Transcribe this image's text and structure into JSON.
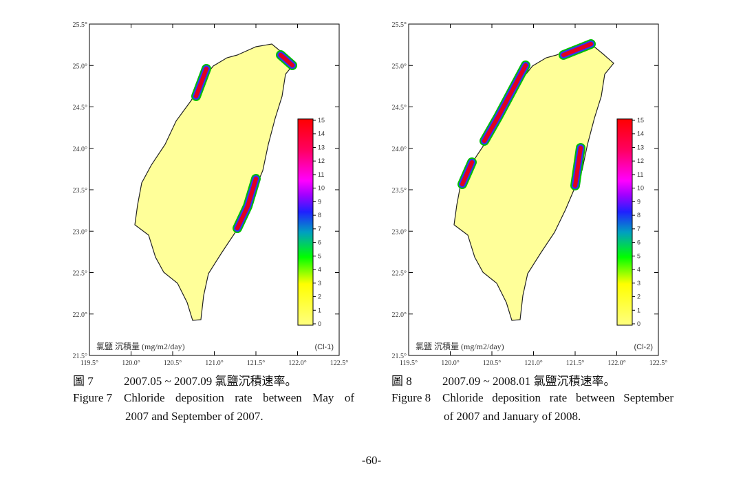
{
  "figures": [
    {
      "lat_labels": [
        "25.5°",
        "25.0°",
        "24.5°",
        "24.0°",
        "23.5°",
        "23.0°",
        "22.5°",
        "22.0°",
        "21.5°"
      ],
      "lon_labels": [
        "119.5°",
        "120.0°",
        "120.5°",
        "121.0°",
        "121.5°",
        "122.0°",
        "122.5°"
      ],
      "colorbar_labels": [
        "0",
        "1",
        "2",
        "3",
        "4",
        "5",
        "6",
        "7",
        "8",
        "9",
        "10",
        "11",
        "12",
        "13",
        "14",
        "15"
      ],
      "unit_label": "氯鹽 沉積量 (mg/m2/day)",
      "tag": "(Cl-1)",
      "caption_zh_label": "圖 7",
      "caption_zh": "2007.05 ~ 2007.09 氯鹽沉積速率。",
      "caption_en_label": "Figure 7",
      "caption_en_lines": [
        "Chloride deposition rate between May of",
        "2007 and September of 2007."
      ]
    },
    {
      "lat_labels": [
        "25.5°",
        "25.0°",
        "24.5°",
        "24.0°",
        "23.5°",
        "23.0°",
        "22.5°",
        "22.0°",
        "21.5°"
      ],
      "lon_labels": [
        "119.5°",
        "120.0°",
        "120.5°",
        "121.0°",
        "121.5°",
        "122.0°",
        "122.5°"
      ],
      "colorbar_labels": [
        "0",
        "1",
        "2",
        "3",
        "4",
        "5",
        "6",
        "7",
        "8",
        "9",
        "10",
        "11",
        "12",
        "13",
        "14",
        "15"
      ],
      "unit_label": "氯鹽 沉積量 (mg/m2/day)",
      "tag": "(Cl-2)",
      "caption_zh_label": "圖 8",
      "caption_zh": "2007.09 ~ 2008.01 氯鹽沉積速率。",
      "caption_en_label": "Figure 8",
      "caption_en_lines": [
        "Chloride deposition rate between September",
        "of 2007 and January of 2008."
      ]
    }
  ],
  "page_number": "-60-"
}
